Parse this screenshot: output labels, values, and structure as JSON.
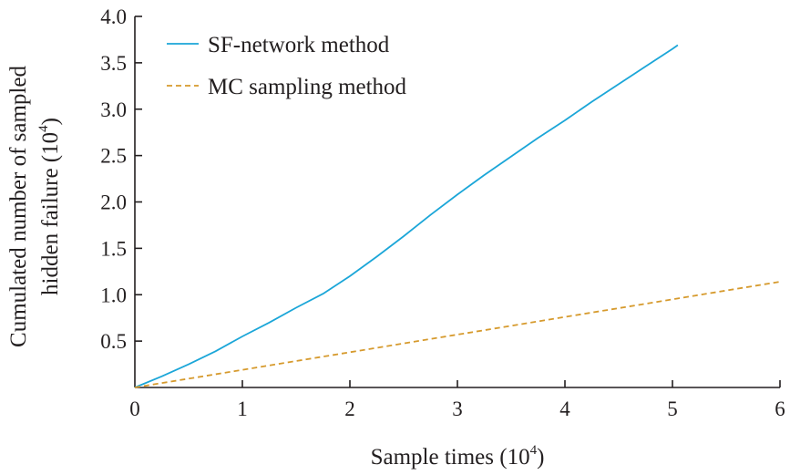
{
  "chart_data": {
    "type": "line",
    "xlabel": "Sample times",
    "xlabel_exponent": "4",
    "ylabel_line1": "Cumulated number of sampled",
    "ylabel_line2": "hidden failure",
    "ylabel_exponent": "4",
    "xlim": [
      0,
      6
    ],
    "ylim": [
      0,
      4.0
    ],
    "x_ticks": [
      {
        "value": 0,
        "label": "0"
      },
      {
        "value": 1,
        "label": "1"
      },
      {
        "value": 2,
        "label": "2"
      },
      {
        "value": 3,
        "label": "3"
      },
      {
        "value": 4,
        "label": "4"
      },
      {
        "value": 5,
        "label": "5"
      },
      {
        "value": 6,
        "label": "6"
      }
    ],
    "y_ticks": [
      {
        "value": 0.5,
        "label": "0.5"
      },
      {
        "value": 1.0,
        "label": "1.0"
      },
      {
        "value": 1.5,
        "label": "1.5"
      },
      {
        "value": 2.0,
        "label": "2.0"
      },
      {
        "value": 2.5,
        "label": "2.5"
      },
      {
        "value": 3.0,
        "label": "3.0"
      },
      {
        "value": 3.5,
        "label": "3.5"
      },
      {
        "value": 4.0,
        "label": "4.0"
      }
    ],
    "grid": false,
    "legend_position": "top-left",
    "series": [
      {
        "name": "SF-network method",
        "color": "#1ba6d8",
        "dash": "solid",
        "x": [
          0,
          0.25,
          0.5,
          0.75,
          1.0,
          1.25,
          1.5,
          1.75,
          2.0,
          2.25,
          2.5,
          2.75,
          3.0,
          3.25,
          3.5,
          3.75,
          4.0,
          4.25,
          4.5,
          4.75,
          5.0,
          5.05
        ],
        "y": [
          0,
          0.12,
          0.25,
          0.39,
          0.55,
          0.7,
          0.86,
          1.01,
          1.2,
          1.41,
          1.63,
          1.86,
          2.08,
          2.29,
          2.49,
          2.69,
          2.88,
          3.08,
          3.27,
          3.46,
          3.65,
          3.69
        ]
      },
      {
        "name": "MC sampling method",
        "color": "#d69a2d",
        "dash": "dashed",
        "x": [
          0,
          6
        ],
        "y": [
          0,
          1.14
        ]
      }
    ]
  }
}
